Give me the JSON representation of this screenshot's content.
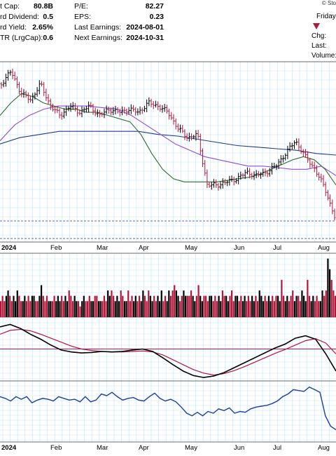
{
  "header": {
    "copyright": "© Sto",
    "day": "Friday",
    "fundamentals_left": [
      {
        "label": "t Cap:",
        "value": "80.8B"
      },
      {
        "label": "rd Dividend:",
        "value": "0.5"
      },
      {
        "label": "rd Yield:",
        "value": "2.65%"
      },
      {
        "label": "TR (LrgCap):",
        "value": "0.6"
      }
    ],
    "fundamentals_mid": [
      {
        "label": "P/E:",
        "value": "82.27"
      },
      {
        "label": "EPS:",
        "value": "0.23"
      },
      {
        "label": "Last Earnings:",
        "value": "2024-08-01"
      },
      {
        "label": "Next Earnings:",
        "value": "2024-10-31"
      }
    ],
    "quote_labels": [
      "Chg:",
      "Last:",
      "Volume:"
    ]
  },
  "colors": {
    "up": "#000000",
    "down": "#b3173a",
    "grid": "#bfe3f7",
    "ma_fast": "#2e6b2e",
    "ma_mid": "#8e4bd6",
    "ma_slow": "#1f3b8f",
    "macd": "#000000",
    "macd_signal": "#b3173a",
    "rsi": "#1a3f9e",
    "band": "#1a3f9e",
    "zero_line": "#c0144a"
  },
  "chart_data": [
    {
      "type": "line",
      "name": "price",
      "x_tick_labels": [
        "2024",
        "Feb",
        "Mar",
        "Apr",
        "May",
        "Jun",
        "Jul",
        "Aug"
      ],
      "price_path": [
        20.6,
        21.0,
        20.3,
        20.1,
        20.6,
        19.9,
        19.6,
        19.9,
        19.7,
        19.9,
        19.6,
        19.8,
        19.7,
        19.8,
        19.7,
        20.0,
        19.9,
        19.7,
        19.2,
        18.9,
        19.0,
        17.4,
        17.4,
        17.5,
        17.6,
        17.8,
        17.7,
        17.8,
        18.0,
        18.4,
        18.8,
        18.3,
        17.9,
        17.3,
        16.4
      ],
      "ma_fast": [
        19.6,
        20.0,
        20.3,
        20.2,
        20.0,
        19.9,
        19.8,
        19.8,
        19.7,
        19.7,
        19.6,
        19.5,
        19.4,
        19.0,
        18.4,
        17.9,
        17.6,
        17.5,
        17.5,
        17.5,
        17.5,
        17.55,
        17.6,
        17.65,
        17.75,
        17.9,
        18.05,
        18.2,
        18.3,
        18.2,
        17.9,
        17.4
      ],
      "ma_mid": [
        18.8,
        19.3,
        19.6,
        19.8,
        19.9,
        19.9,
        19.9,
        19.85,
        19.8,
        19.6,
        19.3,
        19.0,
        18.7,
        18.5,
        18.3,
        18.2,
        18.1,
        18.0,
        18.0,
        17.95,
        17.9,
        17.9,
        18.0,
        17.7
      ],
      "ma_slow": [
        18.7,
        18.9,
        19.0,
        19.1,
        19.1,
        19.1,
        19.1,
        19.1,
        19.0,
        18.95,
        18.85,
        18.75,
        18.65,
        18.6,
        18.55,
        18.5,
        18.4,
        18.35
      ],
      "y_range": [
        15.6,
        21.3
      ]
    },
    {
      "type": "bar",
      "name": "volume",
      "values": [
        3,
        4,
        3,
        4,
        5,
        4,
        3,
        4,
        3,
        5,
        4,
        3,
        3,
        4,
        3,
        4,
        3,
        4,
        4,
        3,
        3,
        4,
        6,
        4,
        3,
        4,
        3,
        3,
        3,
        4,
        3,
        4,
        3,
        4,
        3,
        4,
        3,
        5,
        4,
        3,
        4,
        3,
        3,
        2,
        3,
        4,
        3,
        3,
        4,
        3,
        3,
        4,
        4,
        3,
        3,
        3,
        4,
        3,
        5,
        4,
        5,
        4,
        3,
        4,
        3,
        5,
        4,
        3,
        3,
        5,
        3,
        4,
        3,
        4,
        3,
        4,
        3,
        5,
        4,
        3,
        5,
        4,
        3,
        4,
        3,
        4,
        3,
        5,
        3,
        4,
        3,
        5,
        4,
        5,
        6,
        5,
        4,
        3,
        4,
        5,
        4,
        4,
        4,
        5,
        4,
        3,
        4,
        6,
        4,
        3,
        4,
        4,
        3,
        4,
        4,
        3,
        4,
        3,
        4,
        3,
        5,
        4,
        4,
        3,
        4,
        5,
        3,
        4,
        4,
        3,
        4,
        3,
        4,
        3,
        4,
        3,
        4,
        3,
        4,
        3,
        5,
        4,
        3,
        4,
        3,
        4,
        3,
        4,
        3,
        4,
        4,
        3,
        7,
        4,
        3,
        4,
        3,
        4,
        5,
        3,
        4,
        4,
        3,
        5,
        4,
        3,
        7,
        4,
        3,
        4,
        3,
        4,
        3,
        3,
        5,
        4,
        5,
        11,
        9,
        7,
        5,
        4
      ],
      "y_range": [
        0,
        12
      ]
    },
    {
      "type": "line",
      "name": "macd",
      "macd": [
        0.45,
        0.5,
        0.42,
        0.3,
        0.2,
        0.08,
        -0.02,
        -0.06,
        -0.08,
        -0.07,
        -0.05,
        -0.06,
        -0.05,
        -0.02,
        0.0,
        -0.05,
        -0.18,
        -0.32,
        -0.45,
        -0.54,
        -0.58,
        -0.55,
        -0.48,
        -0.38,
        -0.28,
        -0.18,
        -0.08,
        0.02,
        0.1,
        0.22,
        0.27,
        0.2,
        -0.1,
        -0.45
      ],
      "signal": [
        0.3,
        0.38,
        0.4,
        0.37,
        0.3,
        0.22,
        0.14,
        0.06,
        0.0,
        -0.03,
        -0.05,
        -0.06,
        -0.06,
        -0.05,
        -0.04,
        -0.06,
        -0.12,
        -0.22,
        -0.32,
        -0.42,
        -0.49,
        -0.53,
        -0.5,
        -0.44,
        -0.36,
        -0.27,
        -0.18,
        -0.09,
        -0.01,
        0.08,
        0.17,
        0.21,
        0.12,
        -0.1
      ],
      "y_range": [
        -0.65,
        0.65
      ]
    },
    {
      "type": "line",
      "name": "rsi",
      "values": [
        52,
        50,
        47,
        52,
        49,
        52,
        45,
        48,
        50,
        49,
        47,
        52,
        50,
        48,
        49,
        46,
        52,
        46,
        48,
        55,
        53,
        57,
        52,
        48,
        50,
        51,
        48,
        47,
        52,
        56,
        50,
        47,
        49,
        46,
        40,
        33,
        30,
        34,
        30,
        35,
        33,
        38,
        36,
        39,
        33,
        35,
        34,
        38,
        40,
        41,
        42,
        44,
        47,
        52,
        55,
        60,
        59,
        58,
        63,
        60,
        57,
        30,
        18,
        14
      ],
      "y_range": [
        0,
        70
      ]
    }
  ]
}
